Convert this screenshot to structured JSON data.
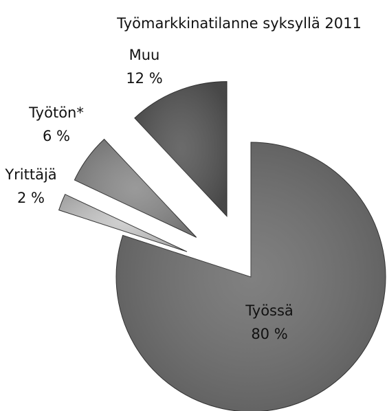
{
  "chart_data": {
    "type": "pie",
    "title": "Työmarkkinatilanne syksyllä 2011",
    "categories": [
      "Työssä",
      "Yrittäjä",
      "Työtön*",
      "Muu"
    ],
    "values": [
      80,
      2,
      6,
      12
    ],
    "value_labels": [
      "80 %",
      "2 %",
      "6 %",
      "12 %"
    ],
    "colors": [
      "#6f6f6f",
      "#c9c9c9",
      "#8c8c8c",
      "#575757"
    ]
  }
}
